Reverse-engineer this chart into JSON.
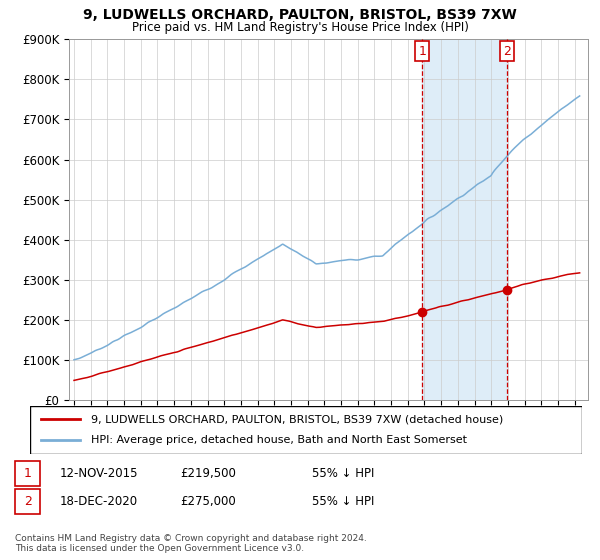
{
  "title": "9, LUDWELLS ORCHARD, PAULTON, BRISTOL, BS39 7XW",
  "subtitle": "Price paid vs. HM Land Registry's House Price Index (HPI)",
  "ylim": [
    0,
    900000
  ],
  "yticks": [
    0,
    100000,
    200000,
    300000,
    400000,
    500000,
    600000,
    700000,
    800000,
    900000
  ],
  "ytick_labels": [
    "£0",
    "£100K",
    "£200K",
    "£300K",
    "£400K",
    "£500K",
    "£600K",
    "£700K",
    "£800K",
    "£900K"
  ],
  "sale1": {
    "date_num": 2015.87,
    "price": 219500,
    "label": "1",
    "date_str": "12-NOV-2015",
    "pct": "55% ↓ HPI"
  },
  "sale2": {
    "date_num": 2020.96,
    "price": 275000,
    "label": "2",
    "date_str": "18-DEC-2020",
    "pct": "55% ↓ HPI"
  },
  "hpi_color": "#7aaed6",
  "price_color": "#cc0000",
  "shade_color": "#deedf8",
  "legend_hpi": "HPI: Average price, detached house, Bath and North East Somerset",
  "legend_price": "9, LUDWELLS ORCHARD, PAULTON, BRISTOL, BS39 7XW (detached house)",
  "footer": "Contains HM Land Registry data © Crown copyright and database right 2024.\nThis data is licensed under the Open Government Licence v3.0.",
  "background_color": "#ffffff",
  "grid_color": "#cccccc"
}
